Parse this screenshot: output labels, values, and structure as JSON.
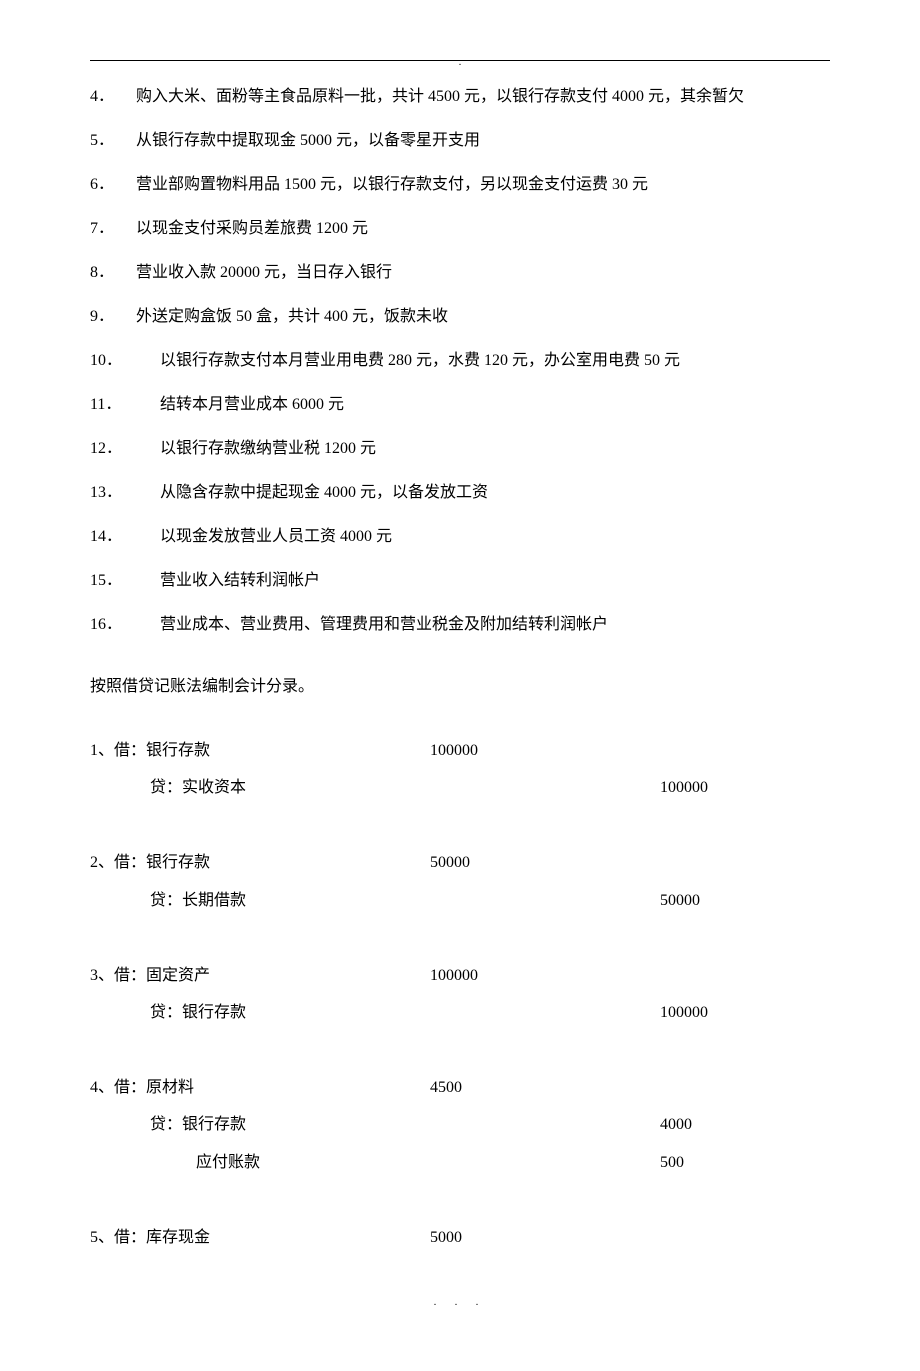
{
  "items": [
    {
      "num": "4．",
      "text": "购入大米、面粉等主食品原料一批，共计 4500 元，以银行存款支付 4000 元，其余暂欠",
      "wide": false
    },
    {
      "num": "5．",
      "text": "从银行存款中提取现金 5000 元，以备零星开支用",
      "wide": false
    },
    {
      "num": "6．",
      "text": "营业部购置物料用品 1500 元，以银行存款支付，另以现金支付运费 30 元",
      "wide": false
    },
    {
      "num": "7．",
      "text": "以现金支付采购员差旅费 1200 元",
      "wide": false
    },
    {
      "num": "8．",
      "text": "营业收入款 20000 元，当日存入银行",
      "wide": false
    },
    {
      "num": "9．",
      "text": "外送定购盒饭 50 盒，共计 400 元，饭款未收",
      "wide": false
    },
    {
      "num": "10．",
      "text": "以银行存款支付本月营业用电费 280 元，水费 120 元，办公室用电费 50 元",
      "wide": true
    },
    {
      "num": "11．",
      "text": "结转本月营业成本 6000 元",
      "wide": true
    },
    {
      "num": "12．",
      "text": "以银行存款缴纳营业税 1200 元",
      "wide": true
    },
    {
      "num": "13．",
      "text": "从隐含存款中提起现金 4000 元，以备发放工资",
      "wide": true
    },
    {
      "num": "14．",
      "text": "以现金发放营业人员工资 4000 元",
      "wide": true
    },
    {
      "num": "15．",
      "text": "营业收入结转利润帐户",
      "wide": true
    },
    {
      "num": "16．",
      "text": "营业成本、营业费用、管理费用和营业税金及附加结转利润帐户",
      "wide": true
    }
  ],
  "instruction": "按照借贷记账法编制会计分录。",
  "entries": [
    {
      "num": "1、",
      "lines": [
        {
          "type": "debit",
          "account": "借：银行存款",
          "amount": "100000"
        },
        {
          "type": "credit",
          "account": "贷：实收资本",
          "amount": "100000"
        }
      ]
    },
    {
      "num": "2、",
      "lines": [
        {
          "type": "debit",
          "account": "借：银行存款",
          "amount": "50000"
        },
        {
          "type": "credit",
          "account": "贷：长期借款",
          "amount": "50000"
        }
      ]
    },
    {
      "num": "3、",
      "lines": [
        {
          "type": "debit",
          "account": "借：固定资产",
          "amount": "100000"
        },
        {
          "type": "credit",
          "account": "贷：银行存款",
          "amount": "100000"
        }
      ]
    },
    {
      "num": "4、",
      "lines": [
        {
          "type": "debit",
          "account": "借：原材料",
          "amount": "4500"
        },
        {
          "type": "credit",
          "account": "贷：银行存款",
          "amount": "4000"
        },
        {
          "type": "creditsub",
          "account": "应付账款",
          "amount": "500"
        }
      ]
    },
    {
      "num": "5、",
      "lines": [
        {
          "type": "debit",
          "account": "借：库存现金",
          "amount": "5000"
        }
      ]
    }
  ],
  "center_dot": ".",
  "footer_dots": ".   .   ."
}
